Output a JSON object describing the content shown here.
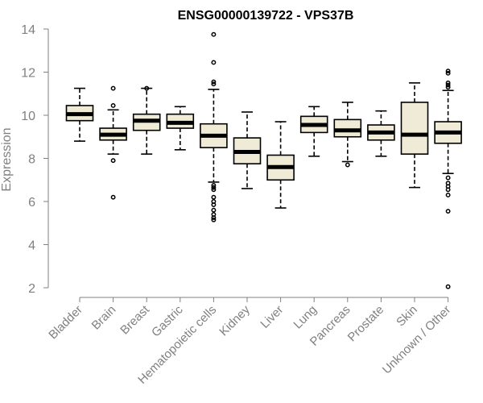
{
  "chart_data": {
    "type": "boxplot",
    "title": "ENSG00000139722 - VPS37B",
    "xlabel": "",
    "ylabel": "Expression",
    "ylim": [
      2,
      14
    ],
    "yticks": [
      2,
      4,
      6,
      8,
      10,
      12,
      14
    ],
    "grid": false,
    "legend": "none",
    "box_fill": "#EFEBD6",
    "box_stroke": "#000000",
    "median_color": "#000000",
    "axis_color": "#808080",
    "categories": [
      "Bladder",
      "Brain",
      "Breast",
      "Gastric",
      "Hematopoietic cells",
      "Kidney",
      "Liver",
      "Lung",
      "Pancreas",
      "Prostate",
      "Skin",
      "Unknown / Other"
    ],
    "boxes": [
      {
        "category": "Bladder",
        "whisker_low": 8.8,
        "q1": 9.75,
        "median": 10.05,
        "q3": 10.45,
        "whisker_high": 11.25,
        "outliers": []
      },
      {
        "category": "Brain",
        "whisker_low": 8.2,
        "q1": 8.85,
        "median": 9.1,
        "q3": 9.4,
        "whisker_high": 10.25,
        "outliers": [
          11.25,
          10.45,
          7.9,
          6.2
        ]
      },
      {
        "category": "Breast",
        "whisker_low": 8.2,
        "q1": 9.3,
        "median": 9.75,
        "q3": 10.05,
        "whisker_high": 11.25,
        "outliers": [
          11.25
        ]
      },
      {
        "category": "Gastric",
        "whisker_low": 8.4,
        "q1": 9.4,
        "median": 9.65,
        "q3": 10.05,
        "whisker_high": 10.4,
        "outliers": []
      },
      {
        "category": "Hematopoietic cells",
        "whisker_low": 6.9,
        "q1": 8.5,
        "median": 9.05,
        "q3": 9.6,
        "whisker_high": 11.2,
        "outliers": [
          13.75,
          12.45,
          11.55,
          11.45,
          6.75,
          6.65,
          6.55,
          6.2,
          6.0,
          5.85,
          5.6,
          5.4,
          5.25,
          5.15
        ]
      },
      {
        "category": "Kidney",
        "whisker_low": 6.6,
        "q1": 7.75,
        "median": 8.3,
        "q3": 8.95,
        "whisker_high": 10.15,
        "outliers": []
      },
      {
        "category": "Liver",
        "whisker_low": 5.7,
        "q1": 7.0,
        "median": 7.6,
        "q3": 8.15,
        "whisker_high": 9.7,
        "outliers": []
      },
      {
        "category": "Lung",
        "whisker_low": 8.1,
        "q1": 9.2,
        "median": 9.55,
        "q3": 9.95,
        "whisker_high": 10.4,
        "outliers": []
      },
      {
        "category": "Pancreas",
        "whisker_low": 7.85,
        "q1": 9.0,
        "median": 9.3,
        "q3": 9.8,
        "whisker_high": 10.6,
        "outliers": [
          7.7
        ]
      },
      {
        "category": "Prostate",
        "whisker_low": 8.1,
        "q1": 8.85,
        "median": 9.2,
        "q3": 9.55,
        "whisker_high": 10.2,
        "outliers": []
      },
      {
        "category": "Skin",
        "whisker_low": 6.65,
        "q1": 8.2,
        "median": 9.1,
        "q3": 10.6,
        "whisker_high": 11.5,
        "outliers": []
      },
      {
        "category": "Unknown / Other",
        "whisker_low": 7.3,
        "q1": 8.7,
        "median": 9.2,
        "q3": 9.7,
        "whisker_high": 11.15,
        "outliers": [
          12.05,
          11.95,
          11.5,
          11.4,
          11.3,
          7.1,
          6.85,
          6.7,
          6.55,
          6.3,
          5.55,
          2.05
        ]
      }
    ]
  }
}
